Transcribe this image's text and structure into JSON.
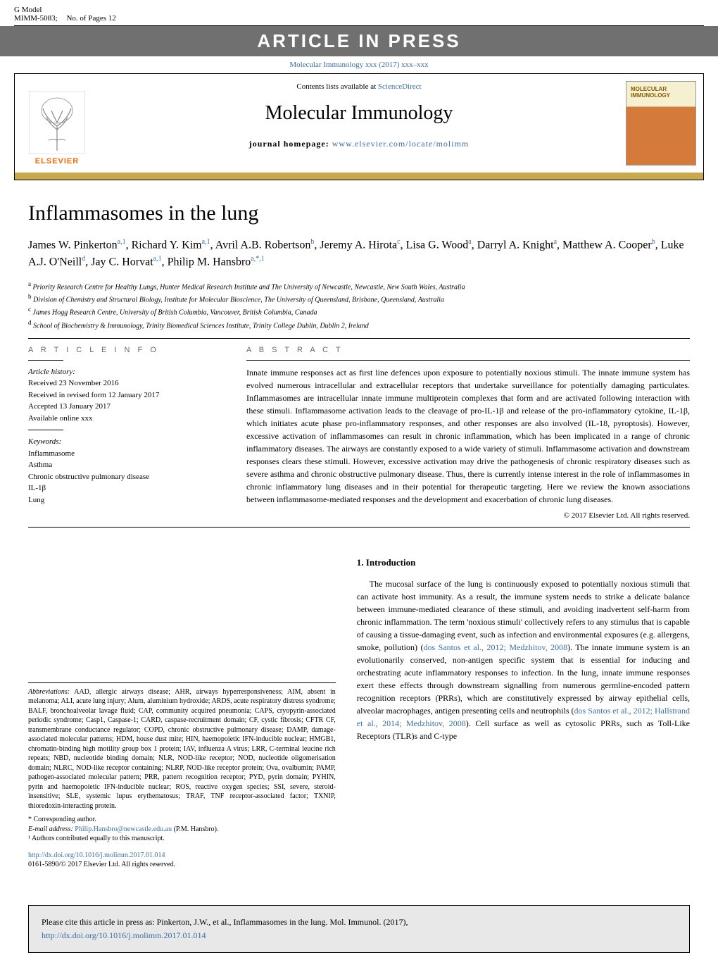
{
  "header": {
    "g_model": "G Model",
    "mimm": "MIMM-5083;",
    "pages": "No. of Pages 12",
    "in_press": "ARTICLE IN PRESS",
    "citation": "Molecular Immunology xxx (2017) xxx–xxx"
  },
  "banner": {
    "contents": "Contents lists available at ",
    "sd": "ScienceDirect",
    "journal_title": "Molecular Immunology",
    "homepage_label": "journal homepage: ",
    "homepage_url": "www.elsevier.com/locate/molimm",
    "elsevier": "ELSEVIER",
    "cover_title": "MOLECULAR IMMUNOLOGY"
  },
  "article": {
    "title": "Inflammasomes in the lung",
    "authors_html": "James W. Pinkerton<sup>a,1</sup>, Richard Y. Kim<sup>a,1</sup>, Avril A.B. Robertson<sup>b</sup>, Jeremy A. Hirota<sup>c</sup>, Lisa G. Wood<sup>a</sup>, Darryl A. Knight<sup>a</sup>, Matthew A. Cooper<sup>b</sup>, Luke A.J. O'Neill<sup>d</sup>, Jay C. Horvat<sup>a,1</sup>, Philip M. Hansbro<sup>a,*,1</sup>",
    "affiliations": [
      {
        "sup": "a",
        "text": "Priority Research Centre for Healthy Lungs, Hunter Medical Research Institute and The University of Newcastle, Newcastle, New South Wales, Australia"
      },
      {
        "sup": "b",
        "text": "Division of Chemistry and Structural Biology, Institute for Molecular Bioscience, The University of Queensland, Brisbane, Queensland, Australia"
      },
      {
        "sup": "c",
        "text": "James Hogg Research Centre, University of British Columbia, Vancouver, British Columbia, Canada"
      },
      {
        "sup": "d",
        "text": "School of Biochemistry & Immunology, Trinity Biomedical Sciences Institute, Trinity College Dublin, Dublin 2, Ireland"
      }
    ]
  },
  "article_info": {
    "head": "A R T I C L E   I N F O",
    "history_label": "Article history:",
    "received": "Received 23 November 2016",
    "revised": "Received in revised form 12 January 2017",
    "accepted": "Accepted 13 January 2017",
    "online": "Available online xxx",
    "keywords_label": "Keywords:",
    "keywords": [
      "Inflammasome",
      "Asthma",
      "Chronic obstructive pulmonary disease",
      "IL-1β",
      "Lung"
    ]
  },
  "abstract": {
    "head": "A B S T R A C T",
    "text": "Innate immune responses act as first line defences upon exposure to potentially noxious stimuli. The innate immune system has evolved numerous intracellular and extracellular receptors that undertake surveillance for potentially damaging particulates. Inflammasomes are intracellular innate immune multiprotein complexes that form and are activated following interaction with these stimuli. Inflammasome activation leads to the cleavage of pro-IL-1β and release of the pro-inflammatory cytokine, IL-1β, which initiates acute phase pro-inflammatory responses, and other responses are also involved (IL-18, pyroptosis). However, excessive activation of inflammasomes can result in chronic inflammation, which has been implicated in a range of chronic inflammatory diseases. The airways are constantly exposed to a wide variety of stimuli. Inflammasome activation and downstream responses clears these stimuli. However, excessive activation may drive the pathogenesis of chronic respiratory diseases such as severe asthma and chronic obstructive pulmonary disease. Thus, there is currently intense interest in the role of inflammasomes in chronic inflammatory lung diseases and in their potential for therapeutic targeting. Here we review the known associations between inflammasome-mediated responses and the development and exacerbation of chronic lung diseases.",
    "copyright": "© 2017 Elsevier Ltd. All rights reserved."
  },
  "abbrev": {
    "label": "Abbreviations:",
    "text": " AAD, allergic airways disease; AHR, airways hyperresponsiveness; AIM, absent in melanoma; ALI, acute lung injury; Alum, aluminium hydroxide; ARDS, acute respiratory distress syndrome; BALF, bronchoalveolar lavage fluid; CAP, community acquired pneumonia; CAPS, cryopyrin-associated periodic syndrome; Casp1, Caspase-1; CARD, caspase-recruitment domain; CF, cystic fibrosis; CFTR CF, transmembrane conductance regulator; COPD, chronic obstructive pulmonary disease; DAMP, damage-associated molecular patterns; HDM, house dust mite; HIN, haemopoietic IFN-inducible nuclear; HMGB1, chromatin-binding high motility group box 1 protein; IAV, influenza A virus; LRR, C-terminal leucine rich repeats; NBD, nucleotide binding domain; NLR, NOD-like receptor; NOD, nucleotide oligomerisation domain; NLRC, NOD-like receptor containing; NLRP, NOD-like receptor protein; Ova, ovalbumin; PAMP, pathogen-associated molecular pattern; PRR, pattern recognition receptor; PYD, pyrin domain; PYHIN, pyrin and haemopoietic IFN-inducible nuclear; ROS, reactive oxygen species; SSI, severe, steroid-insensitive; SLE, systemic lupus erythematosus; TRAF, TNF receptor-associated factor; TXNIP, thioredoxin-interacting protein."
  },
  "footnotes": {
    "corr": "* Corresponding author.",
    "email_label": "E-mail address: ",
    "email": "Philip.Hansbro@newcastle.edu.au",
    "email_suffix": " (P.M. Hansbro).",
    "equal": "¹ Authors contributed equally to this manuscript."
  },
  "doi": {
    "url": "http://dx.doi.org/10.1016/j.molimm.2017.01.014",
    "issn": "0161-5890/© 2017 Elsevier Ltd. All rights reserved."
  },
  "intro": {
    "head": "1. Introduction",
    "para": "The mucosal surface of the lung is continuously exposed to potentially noxious stimuli that can activate host immunity. As a result, the immune system needs to strike a delicate balance between immune-mediated clearance of these stimuli, and avoiding inadvertent self-harm from chronic inflammation. The term 'noxious stimuli' collectively refers to any stimulus that is capable of causing a tissue-damaging event, such as infection and environmental exposures (e.g. allergens, smoke, pollution) (",
    "ref1": "dos Santos et al., 2012; Medzhitov, 2008",
    "para2": "). The innate immune system is an evolutionarily conserved, non-antigen specific system that is essential for inducing and orchestrating acute inflammatory responses to infection. In the lung, innate immune responses exert these effects through downstream signalling from numerous germline-encoded pattern recognition receptors (PRRs), which are constitutively expressed by airway epithelial cells, alveolar macrophages, antigen presenting cells and neutrophils (",
    "ref2": "dos Santos et al., 2012; Hallstrand et al., 2014; Medzhitov, 2008",
    "para3": "). Cell surface as well as cytosolic PRRs, such as Toll-Like Receptors (TLR)s and C-type"
  },
  "cite_box": {
    "text": "Please cite this article in press as: Pinkerton, J.W., et al., Inflammasomes in the lung. Mol. Immunol. (2017), ",
    "url": "http://dx.doi.org/10.1016/j.molimm.2017.01.014"
  }
}
